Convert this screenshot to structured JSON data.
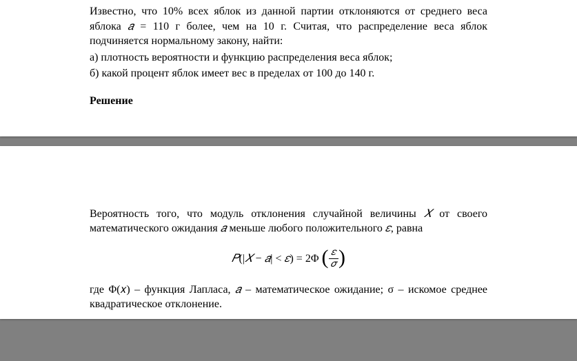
{
  "colors": {
    "page_bg": "#ffffff",
    "outer_bg": "#808080",
    "text": "#000000"
  },
  "typography": {
    "body_font": "Times New Roman",
    "body_size_pt": 12,
    "heading_weight": "bold"
  },
  "page1": {
    "p1_part1": "Известно, что 10% всех яблок из данной партии отклоняются от среднего веса яблока ",
    "p1_math1_a": "𝑎",
    "p1_math1_eq": " = 110",
    "p1_part2": " г более, чем на 10 г. Считая, что распределение веса яблок подчиняется нормальному закону, найти:",
    "p2": "а) плотность вероятности и функцию распределения веса яблок;",
    "p3": "б) какой процент яблок имеет вес в пределах от 100 до 140 г.",
    "heading": "Решение"
  },
  "page2": {
    "p1_part1": "Вероятность того, что модуль отклонения случайной величины ",
    "p1_X": "𝑋",
    "p1_part2": " от своего математического ожидания ",
    "p1_a": "𝑎",
    "p1_part3": " меньше любого положительного ",
    "p1_eps": "𝜀",
    "p1_part4": ", равна",
    "formula": {
      "P": "𝑃",
      "abs_open": "(|",
      "X": "𝑋",
      "minus": " − ",
      "a": "𝑎",
      "abs_close": "| < ",
      "eps": "𝜀",
      "rparen": ")",
      "eq": " = 2Φ ",
      "frac_num": "𝜀",
      "frac_den": "𝜎"
    },
    "p2_part1": "где ",
    "p2_Phi": "Φ(𝑥)",
    "p2_part2": " – функция Лапласа, ",
    "p2_a": "𝑎",
    "p2_part3": " – математическое ожидание; ",
    "p2_sigma": "σ",
    "p2_part4": " – искомое среднее квадратическое отклонение."
  }
}
